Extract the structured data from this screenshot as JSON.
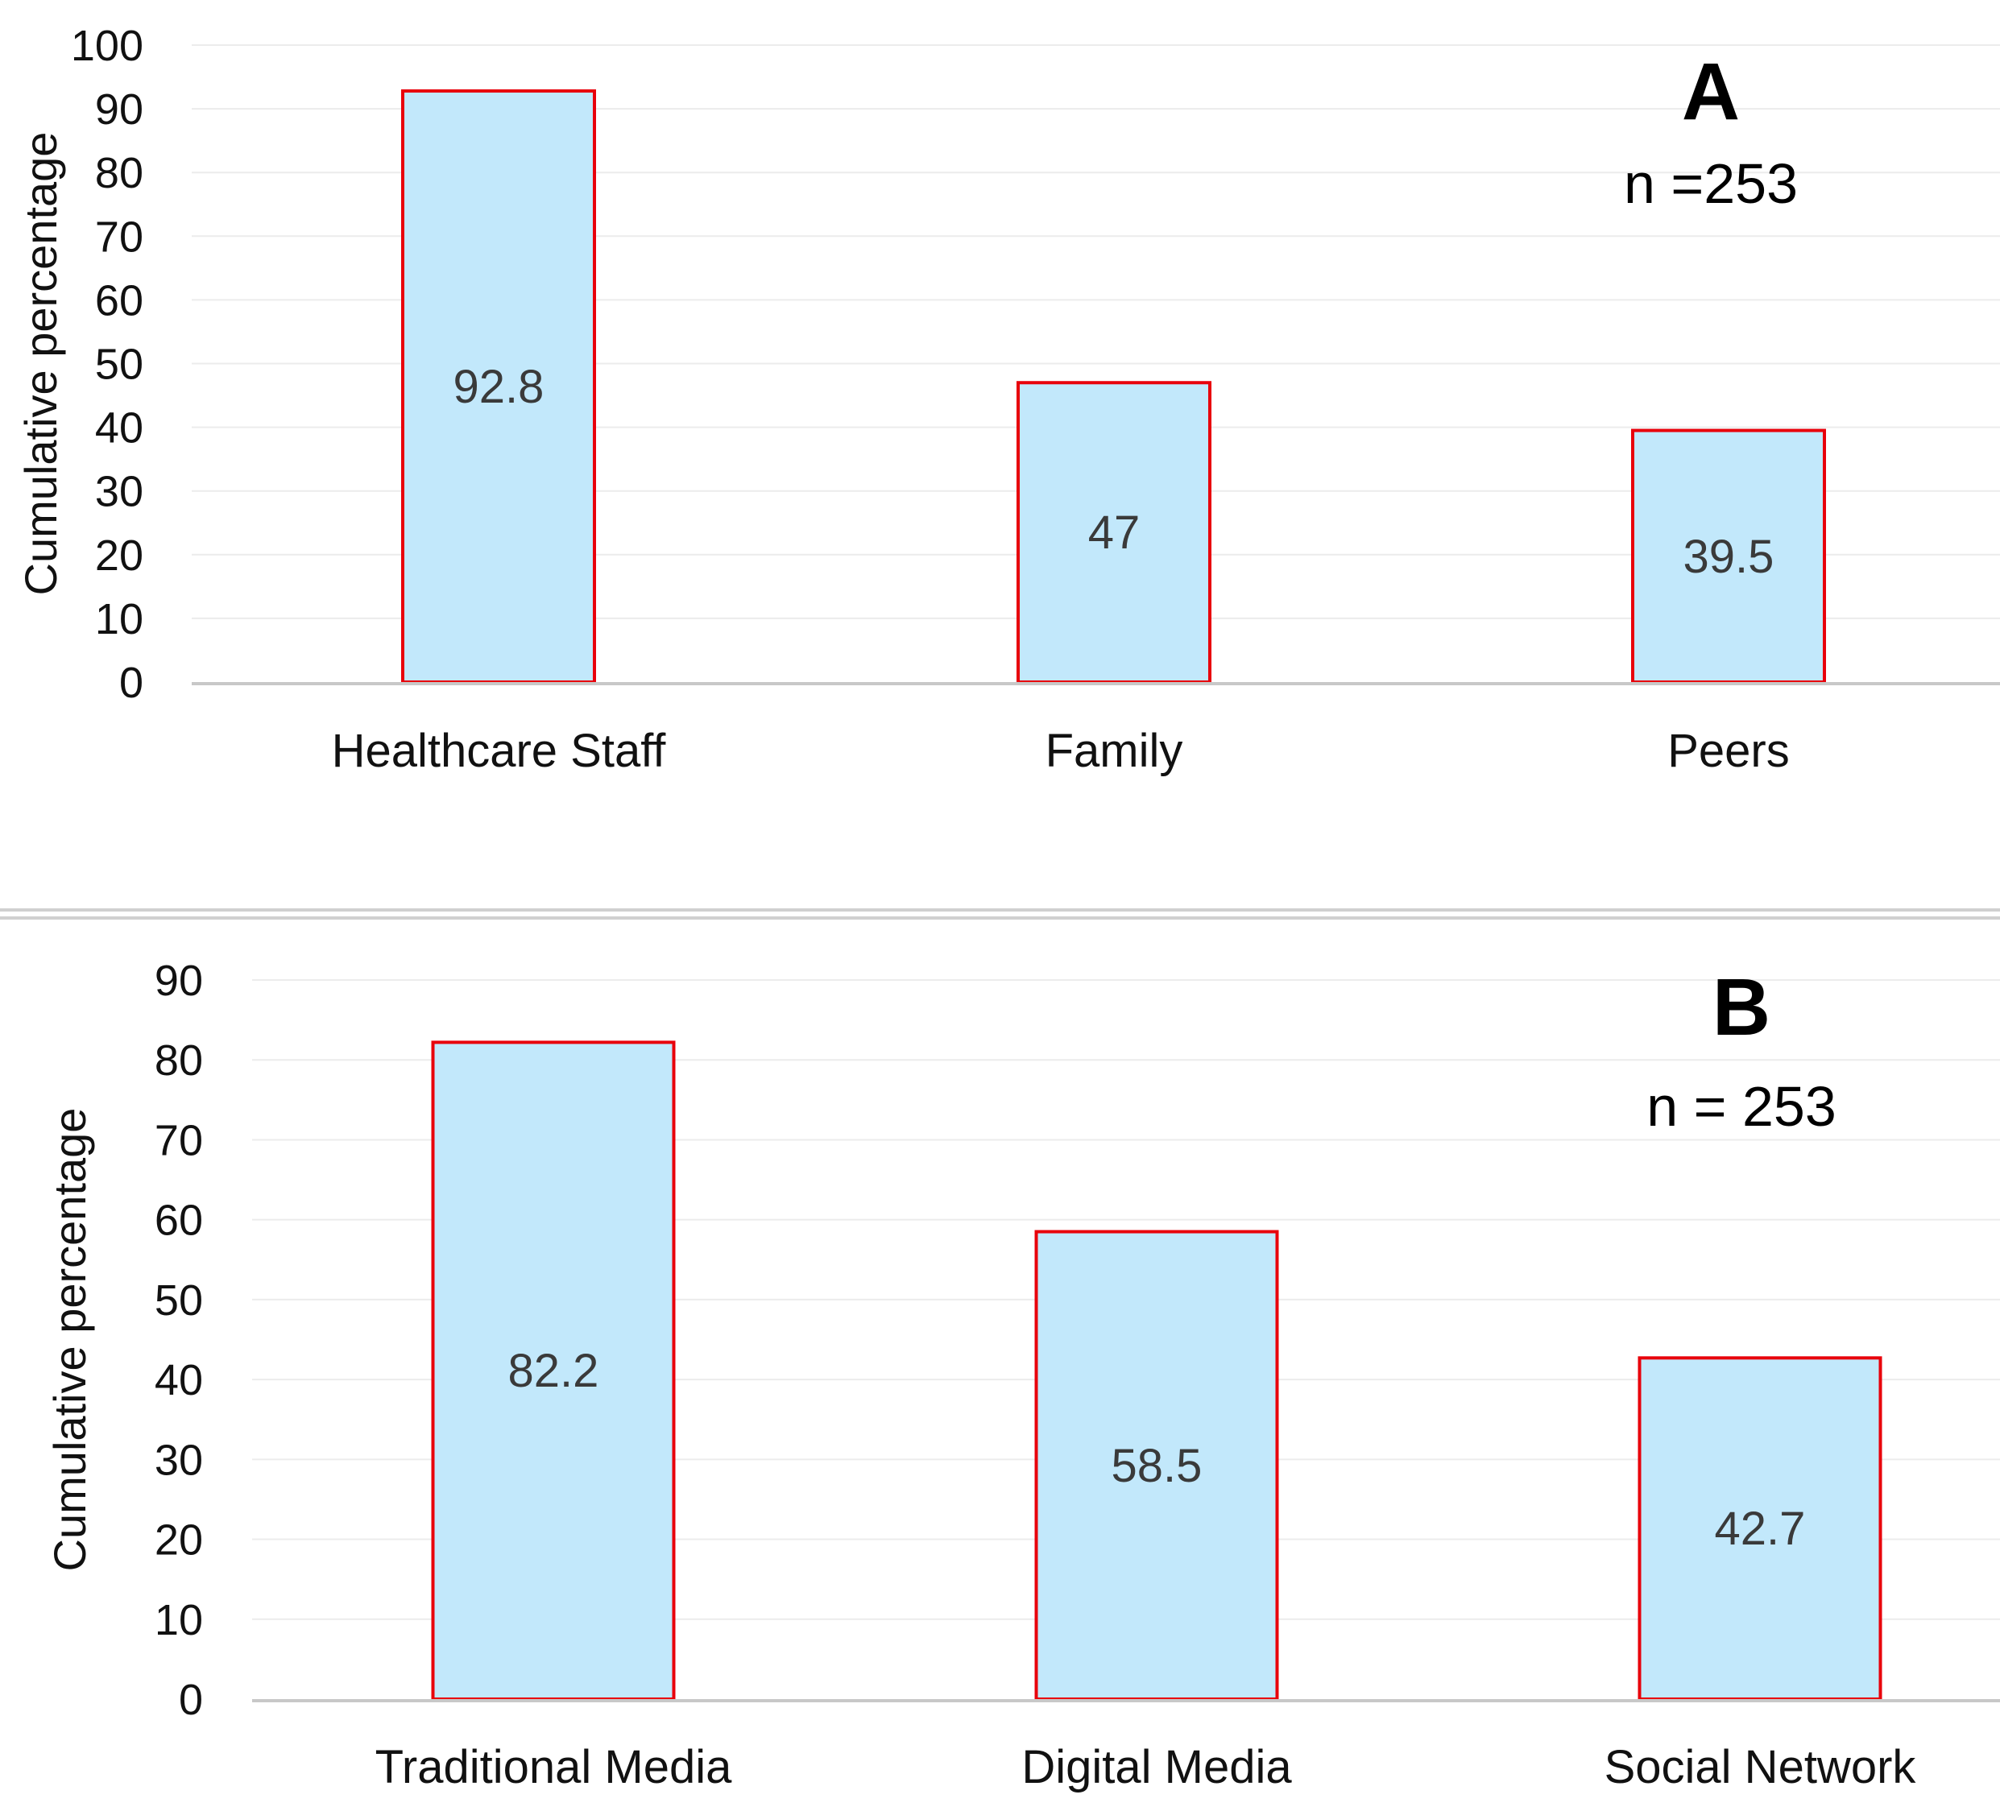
{
  "chart_data": [
    {
      "type": "bar",
      "panel_label": "A",
      "annotation": "n =253",
      "categories": [
        "Healthcare Staff",
        "Family",
        "Peers"
      ],
      "values": [
        92.8,
        47,
        39.5
      ],
      "data_labels": [
        "92.8",
        "47",
        "39.5"
      ],
      "ylabel": "Cumulative percentage",
      "ylim": [
        0,
        100
      ],
      "yticks": [
        0,
        10,
        20,
        30,
        40,
        50,
        60,
        70,
        80,
        90,
        100
      ],
      "grid": true,
      "bar_fill": "#c2e8fb",
      "bar_stroke": "#e8000b",
      "grid_color": "#ececec",
      "axis_color": "#c8c8c8"
    },
    {
      "type": "bar",
      "panel_label": "B",
      "annotation": "n = 253",
      "categories": [
        "Traditional Media",
        "Digital Media",
        "Social Network"
      ],
      "values": [
        82.2,
        58.5,
        42.7
      ],
      "data_labels": [
        "82.2",
        "58.5",
        "42.7"
      ],
      "ylabel": "Cumulative percentage",
      "ylim": [
        0,
        90
      ],
      "yticks": [
        0,
        10,
        20,
        30,
        40,
        50,
        60,
        70,
        80,
        90
      ],
      "grid": true,
      "bar_fill": "#c2e8fb",
      "bar_stroke": "#e8000b",
      "grid_color": "#ececec",
      "axis_color": "#c8c8c8"
    }
  ]
}
